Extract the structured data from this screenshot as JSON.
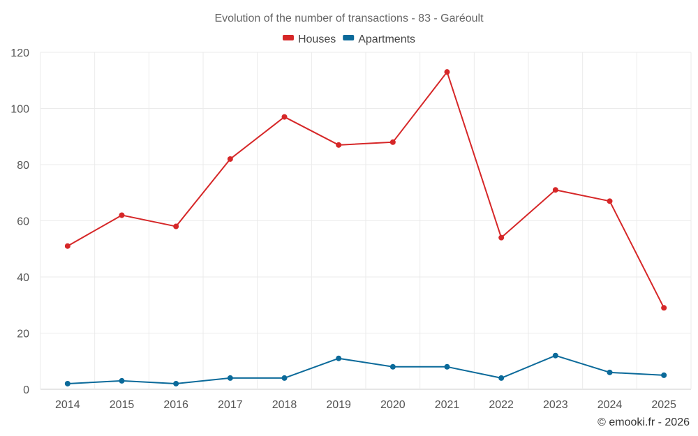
{
  "chart_data": {
    "type": "line",
    "title": "Evolution of the number of transactions - 83 - Garéoult",
    "categories": [
      "2014",
      "2015",
      "2016",
      "2017",
      "2018",
      "2019",
      "2020",
      "2021",
      "2022",
      "2023",
      "2024",
      "2025"
    ],
    "series": [
      {
        "name": "Houses",
        "color": "#d62728",
        "values": [
          51,
          62,
          58,
          82,
          97,
          87,
          88,
          113,
          54,
          71,
          67,
          29
        ]
      },
      {
        "name": "Apartments",
        "color": "#0b6a9a",
        "values": [
          2,
          3,
          2,
          4,
          4,
          11,
          8,
          8,
          4,
          12,
          6,
          5
        ]
      }
    ],
    "ylim": [
      0,
      120
    ],
    "yticks": [
      0,
      20,
      40,
      60,
      80,
      100,
      120
    ],
    "xlabel": "",
    "ylabel": "",
    "grid": true,
    "legend_position": "top-center"
  },
  "credit": "© emooki.fr - 2026"
}
